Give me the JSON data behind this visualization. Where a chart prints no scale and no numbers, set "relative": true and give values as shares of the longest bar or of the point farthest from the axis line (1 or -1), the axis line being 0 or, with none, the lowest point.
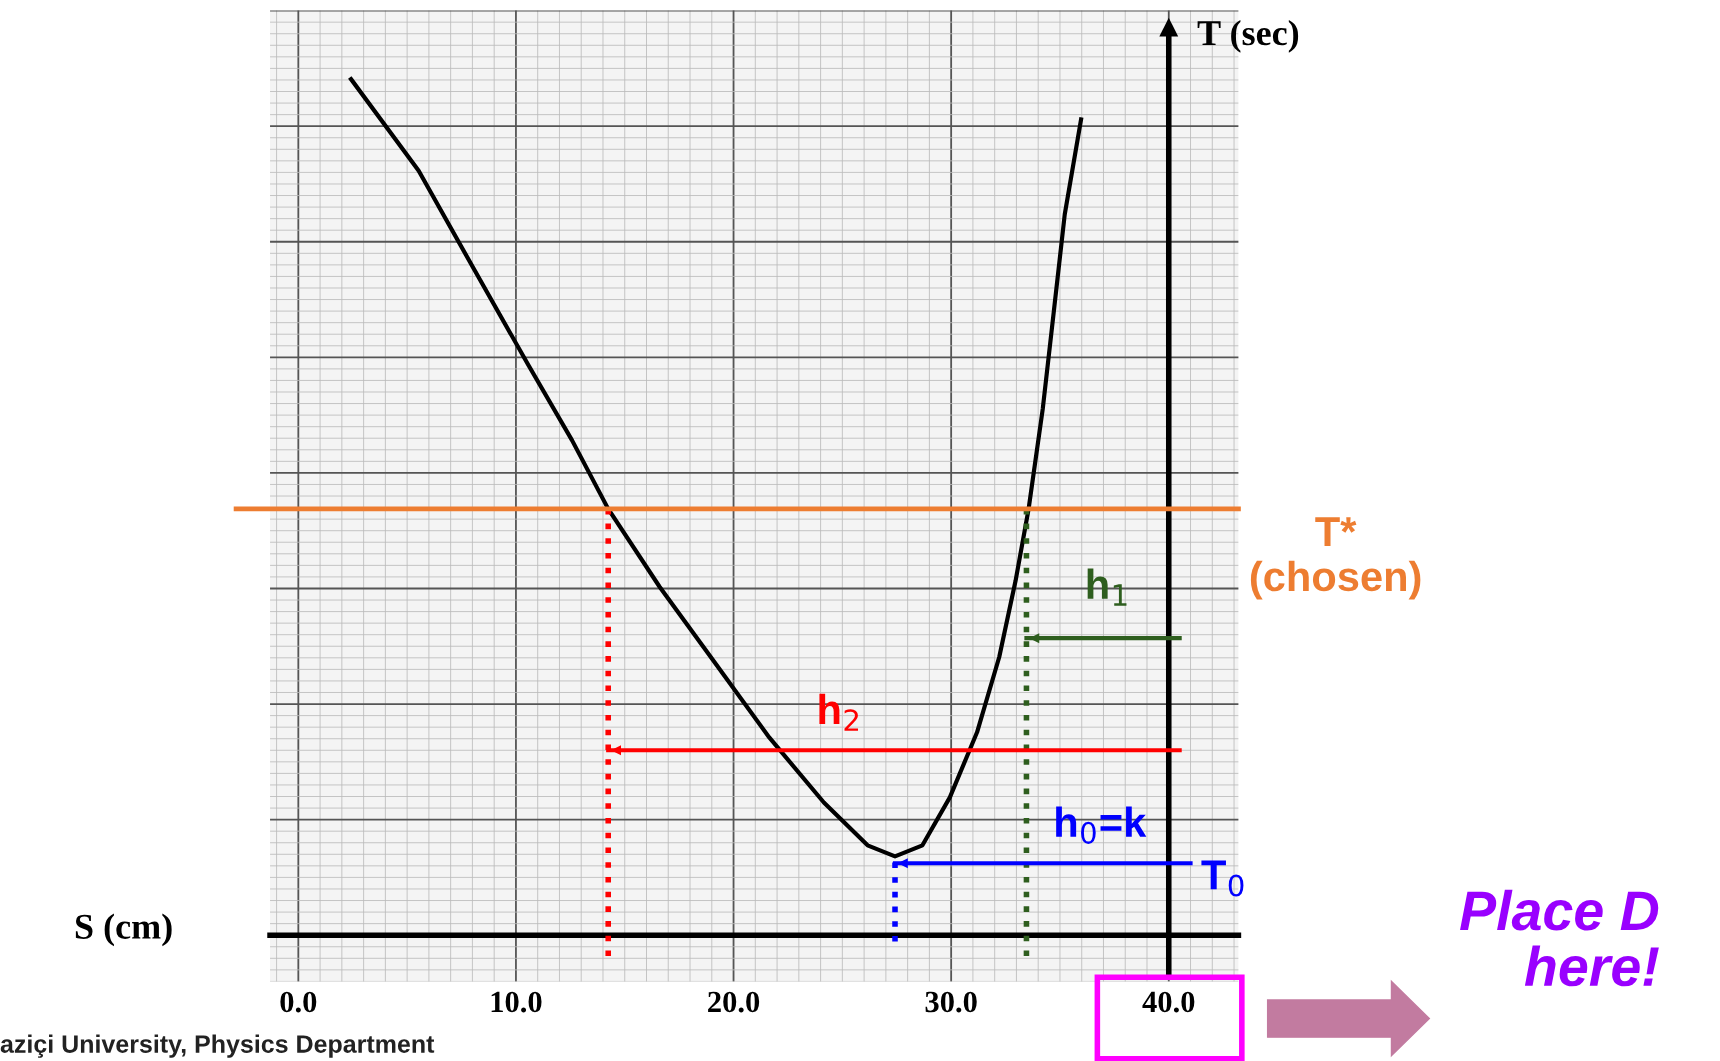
{
  "chart_data": {
    "type": "line",
    "relative": true,
    "xlabel": "S (cm)",
    "ylabel": "T (sec)",
    "xlim": [
      -1.3,
      43.2
    ],
    "xticks": [
      {
        "value": 0,
        "label": "0.0"
      },
      {
        "value": 10,
        "label": "10.0"
      },
      {
        "value": 20,
        "label": "20.0"
      },
      {
        "value": 30,
        "label": "30.0"
      },
      {
        "value": 40,
        "label": "40.0"
      }
    ],
    "grid": true,
    "legend": false,
    "series": [
      {
        "color": "#000000",
        "line_style": "solid",
        "x": [
          2.42,
          5.53,
          8.05,
          10.57,
          12.58,
          14.24,
          16.6,
          19.12,
          21.64,
          24.15,
          26.16,
          27.42,
          28.68,
          29.94,
          31.19,
          32.21,
          32.96,
          33.56,
          34.21,
          34.72,
          35.22,
          35.97
        ],
        "values": [
          1,
          0.893,
          0.779,
          0.666,
          0.578,
          0.498,
          0.407,
          0.319,
          0.231,
          0.155,
          0.105,
          0.092,
          0.105,
          0.161,
          0.237,
          0.325,
          0.414,
          0.498,
          0.615,
          0.729,
          0.842,
          0.953
        ]
      },
      {
        "color": "#ff0000",
        "line_style": "dotted",
        "x": [
          14.24,
          14.24
        ],
        "values": [
          0.498,
          -0.034
        ]
      },
      {
        "color": "#0000ff",
        "line_style": "dotted",
        "x": [
          27.42,
          27.42
        ],
        "values": [
          0.085,
          -0.015
        ]
      },
      {
        "color": "#2e5e1e",
        "line_style": "dotted",
        "x": [
          33.46,
          33.46
        ],
        "values": [
          0.498,
          -0.025
        ]
      },
      {
        "color": "#2e5e1e",
        "line_style": "solid",
        "x": [
          40.5,
          33.46
        ],
        "values": [
          0.347,
          0.347
        ]
      },
      {
        "color": "#ff0000",
        "line_style": "solid",
        "x": [
          40.5,
          14.24
        ],
        "values": [
          0.216,
          0.216
        ]
      },
      {
        "color": "#0000ff",
        "line_style": "solid",
        "x": [
          41.0,
          27.42
        ],
        "values": [
          0.084,
          0.084
        ]
      }
    ],
    "ref_lines": [
      {
        "axis": "y",
        "value": 0.498,
        "label": "T*\n(chosen)",
        "color": "#ed7d31",
        "line_style": "solid"
      },
      {
        "axis": "x",
        "value": 40,
        "color": "#000000",
        "line_style": "solid"
      }
    ],
    "annotations": [
      "h$_{1}$",
      "h$_{2}$",
      "h$_{0}$=k",
      "T$_{0}$",
      "Place D\nhere!",
      "aziçi University, Physics Department"
    ]
  }
}
